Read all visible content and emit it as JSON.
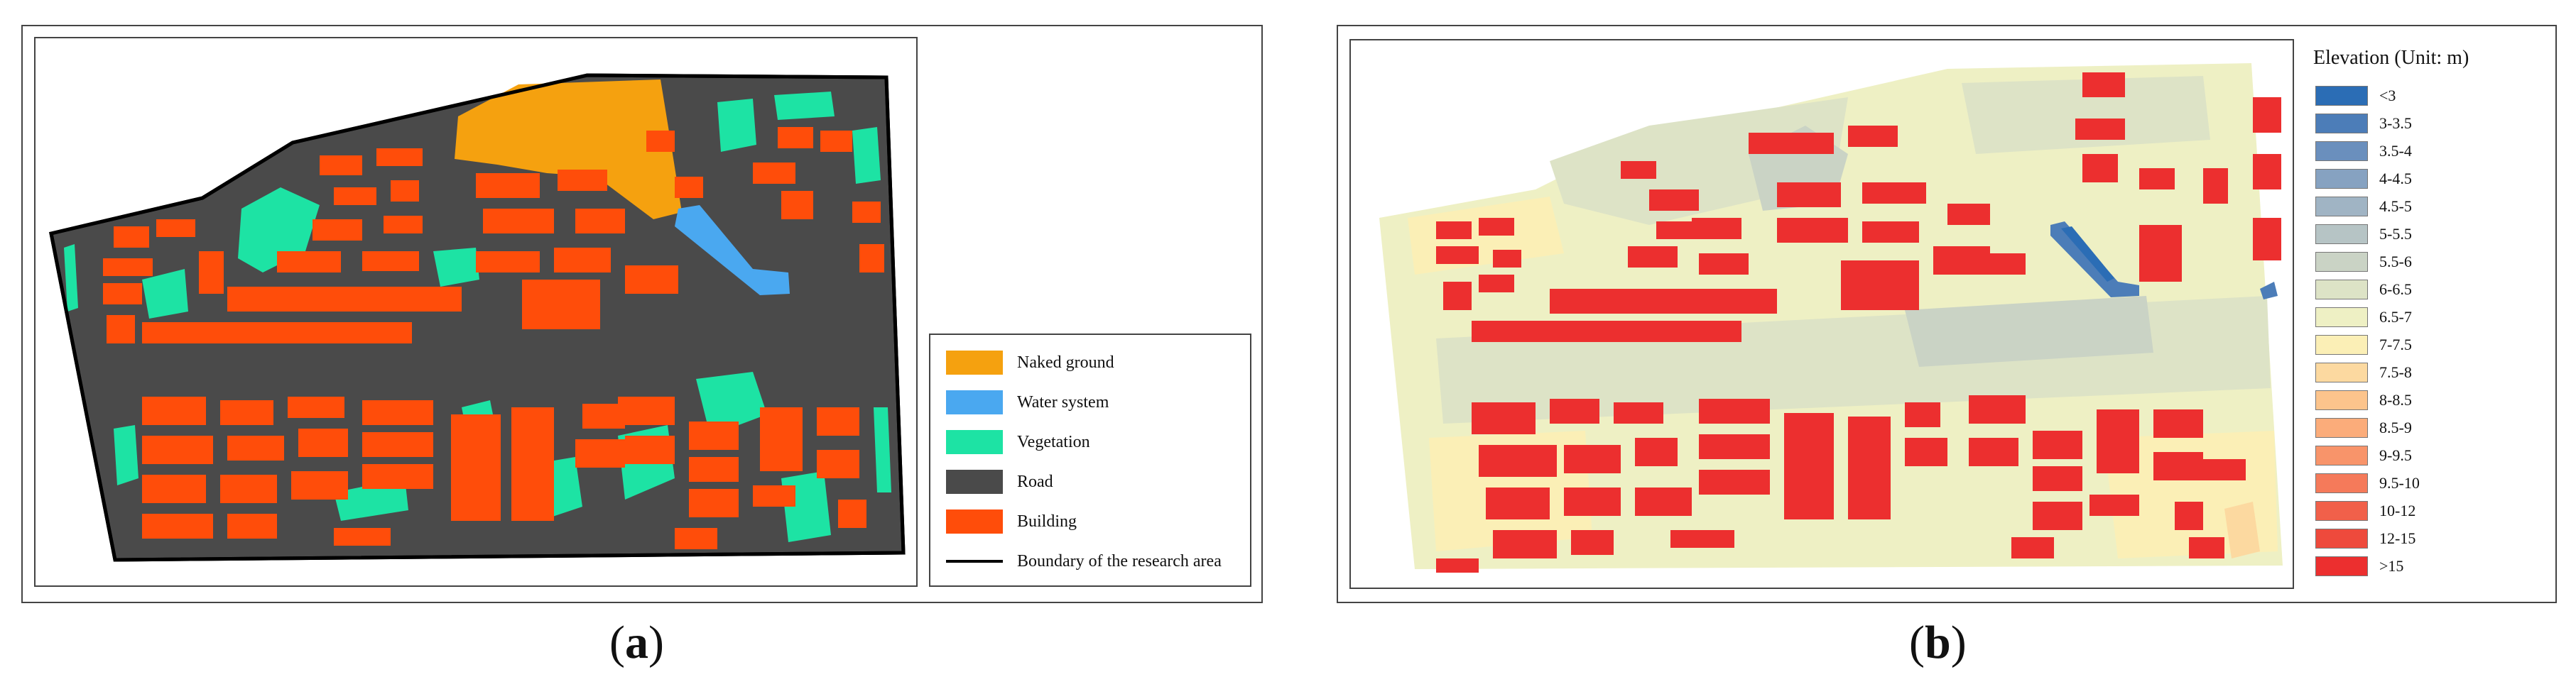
{
  "panel_a": {
    "caption": {
      "open": "(",
      "letter": "a",
      "close": ")"
    },
    "legend": [
      {
        "label": "Naked ground",
        "color": "#f5a10f",
        "icon": "swatch"
      },
      {
        "label": "Water system",
        "color": "#4aa8f0",
        "icon": "swatch"
      },
      {
        "label": "Vegetation",
        "color": "#1de3a4",
        "icon": "swatch"
      },
      {
        "label": "Road",
        "color": "#4a4a4a",
        "icon": "swatch"
      },
      {
        "label": "Building",
        "color": "#ff4d0a",
        "icon": "swatch"
      },
      {
        "label": "Boundary of the research area",
        "color": "#000000",
        "icon": "line"
      }
    ]
  },
  "panel_b": {
    "caption": {
      "open": "(",
      "letter": "b",
      "close": ")"
    },
    "legend_title": "Elevation (Unit: m)",
    "legend": [
      {
        "label": "<3",
        "color": "#2b6db5"
      },
      {
        "label": "3-3.5",
        "color": "#4c7db8"
      },
      {
        "label": "3.5-4",
        "color": "#6a8fbd"
      },
      {
        "label": "4-4.5",
        "color": "#86a2c1"
      },
      {
        "label": "4.5-5",
        "color": "#a0b4c4"
      },
      {
        "label": "5-5.5",
        "color": "#b6c4c5"
      },
      {
        "label": "5.5-6",
        "color": "#cad3c5"
      },
      {
        "label": "6-6.5",
        "color": "#dde3c6"
      },
      {
        "label": "6.5-7",
        "color": "#eef0c4"
      },
      {
        "label": "7-7.5",
        "color": "#fbefb6"
      },
      {
        "label": "7.5-8",
        "color": "#fcd9a0"
      },
      {
        "label": "8-8.5",
        "color": "#fcc48c"
      },
      {
        "label": "8.5-9",
        "color": "#fbac7a"
      },
      {
        "label": "9-9.5",
        "color": "#f8946a"
      },
      {
        "label": "9.5-10",
        "color": "#f57a5a"
      },
      {
        "label": "10-12",
        "color": "#f1604a"
      },
      {
        "label": "12-15",
        "color": "#ee4a3c"
      },
      {
        "label": ">15",
        "color": "#ec2f2f"
      }
    ]
  }
}
